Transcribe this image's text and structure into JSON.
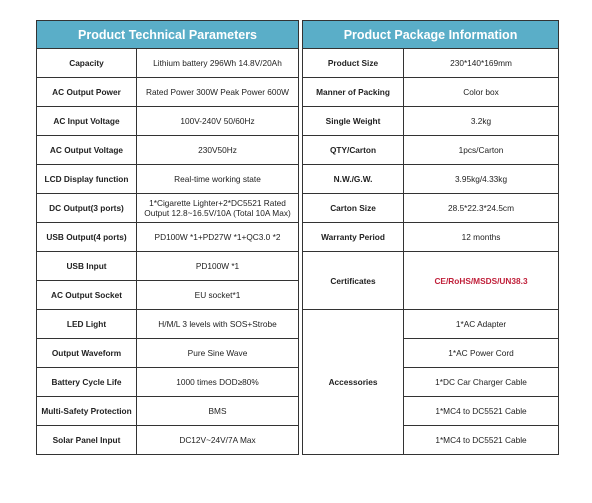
{
  "left_header": "Product Technical Parameters",
  "right_header": "Product Package Information",
  "technical": [
    {
      "label": "Capacity",
      "value": "Lithium battery 296Wh 14.8V/20Ah"
    },
    {
      "label": "AC Output Power",
      "value": "Rated Power 300W Peak Power 600W"
    },
    {
      "label": "AC Input Voltage",
      "value": "100V-240V 50/60Hz"
    },
    {
      "label": "AC Output Voltage",
      "value": "230V50Hz"
    },
    {
      "label": "LCD Display function",
      "value": "Real-time working state"
    },
    {
      "label": "DC Output(3 ports)",
      "value": "1*Cigarette Lighter+2*DC5521 Rated Output 12.8~16.5V/10A (Total 10A Max)"
    },
    {
      "label": "USB Output(4 ports)",
      "value": "PD100W *1+PD27W *1+QC3.0 *2"
    },
    {
      "label": "USB Input",
      "value": "PD100W *1"
    },
    {
      "label": "AC Output Socket",
      "value": "EU socket*1"
    },
    {
      "label": "LED Light",
      "value": "H/M/L 3 levels with SOS+Strobe"
    },
    {
      "label": "Output Waveform",
      "value": "Pure Sine Wave"
    },
    {
      "label": "Battery Cycle Life",
      "value": "1000 times  DOD≥80%"
    },
    {
      "label": "Multi-Safety Protection",
      "value": "BMS"
    },
    {
      "label": "Solar Panel Input",
      "value": "DC12V~24V/7A Max"
    }
  ],
  "package": [
    {
      "label": "Product Size",
      "value": "230*140*169mm"
    },
    {
      "label": "Manner of Packing",
      "value": "Color box"
    },
    {
      "label": "Single Weight",
      "value": "3.2kg"
    },
    {
      "label": "QTY/Carton",
      "value": "1pcs/Carton"
    },
    {
      "label": "N.W./G.W.",
      "value": "3.95kg/4.33kg"
    },
    {
      "label": "Carton Size",
      "value": "28.5*22.3*24.5cm"
    },
    {
      "label": "Warranty Period",
      "value": "12 months"
    }
  ],
  "certificates": {
    "label": "Certificates",
    "value": "CE/RoHS/MSDS/UN38.3",
    "color": "#c0203a"
  },
  "accessories": {
    "label": "Accessories",
    "items": [
      "1*AC Adapter",
      "1*AC Power Cord",
      "1*DC Car Charger Cable",
      "1*MC4 to DC5521 Cable",
      "1*MC4 to DC5521 Cable"
    ]
  },
  "colors": {
    "header_bg": "#5aaec8",
    "header_text": "#ffffff",
    "border": "#333333"
  }
}
